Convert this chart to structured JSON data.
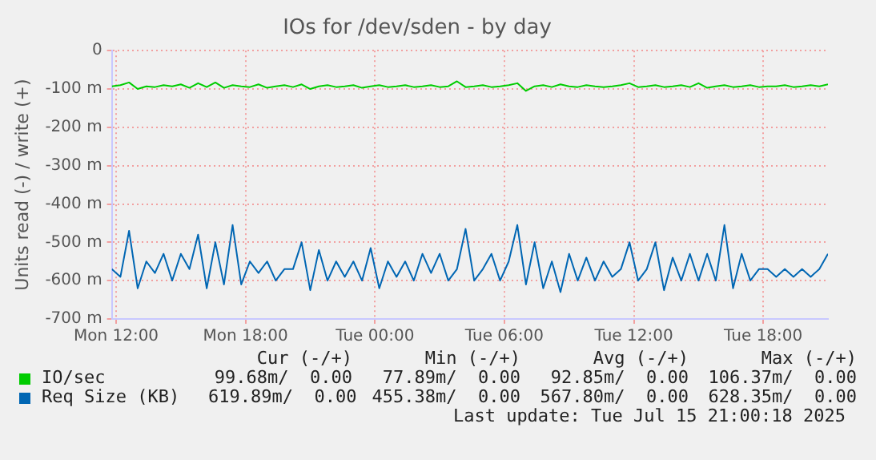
{
  "chart_data": {
    "type": "line",
    "title": "IOs for /dev/sden - by day",
    "ylabel": "Units read (-) / write (+)",
    "x": [
      "2025-07-14T11:48",
      "2025-07-14T12:12",
      "2025-07-14T12:36",
      "2025-07-14T13:00",
      "2025-07-14T13:24",
      "2025-07-14T13:48",
      "2025-07-14T14:12",
      "2025-07-14T14:36",
      "2025-07-14T15:00",
      "2025-07-14T15:24",
      "2025-07-14T15:48",
      "2025-07-14T16:12",
      "2025-07-14T16:36",
      "2025-07-14T17:00",
      "2025-07-14T17:24",
      "2025-07-14T17:48",
      "2025-07-14T18:12",
      "2025-07-14T18:36",
      "2025-07-14T19:00",
      "2025-07-14T19:24",
      "2025-07-14T19:48",
      "2025-07-14T20:12",
      "2025-07-14T20:36",
      "2025-07-14T21:00",
      "2025-07-14T21:24",
      "2025-07-14T21:48",
      "2025-07-14T22:12",
      "2025-07-14T22:36",
      "2025-07-14T23:00",
      "2025-07-14T23:24",
      "2025-07-14T23:48",
      "2025-07-15T00:12",
      "2025-07-15T00:36",
      "2025-07-15T01:00",
      "2025-07-15T01:24",
      "2025-07-15T01:48",
      "2025-07-15T02:12",
      "2025-07-15T02:36",
      "2025-07-15T03:00",
      "2025-07-15T03:24",
      "2025-07-15T03:48",
      "2025-07-15T04:12",
      "2025-07-15T04:36",
      "2025-07-15T05:00",
      "2025-07-15T05:24",
      "2025-07-15T05:48",
      "2025-07-15T06:12",
      "2025-07-15T06:36",
      "2025-07-15T07:00",
      "2025-07-15T07:24",
      "2025-07-15T07:48",
      "2025-07-15T08:12",
      "2025-07-15T08:36",
      "2025-07-15T09:00",
      "2025-07-15T09:24",
      "2025-07-15T09:48",
      "2025-07-15T10:12",
      "2025-07-15T10:36",
      "2025-07-15T11:00",
      "2025-07-15T11:24",
      "2025-07-15T11:48",
      "2025-07-15T12:12",
      "2025-07-15T12:36",
      "2025-07-15T13:00",
      "2025-07-15T13:24",
      "2025-07-15T13:48",
      "2025-07-15T14:12",
      "2025-07-15T14:36",
      "2025-07-15T15:00",
      "2025-07-15T15:24",
      "2025-07-15T15:48",
      "2025-07-15T16:12",
      "2025-07-15T16:36",
      "2025-07-15T17:00",
      "2025-07-15T17:24",
      "2025-07-15T17:48",
      "2025-07-15T18:12",
      "2025-07-15T18:36",
      "2025-07-15T19:00",
      "2025-07-15T19:24",
      "2025-07-15T19:48",
      "2025-07-15T20:12",
      "2025-07-15T20:36",
      "2025-07-15T21:00"
    ],
    "series": [
      {
        "name": "IO/sec",
        "color": "#00cc00",
        "values": [
          -93,
          -90,
          -83,
          -100,
          -93,
          -95,
          -90,
          -93,
          -88,
          -97,
          -85,
          -95,
          -83,
          -97,
          -90,
          -93,
          -95,
          -88,
          -97,
          -93,
          -90,
          -95,
          -88,
          -100,
          -93,
          -90,
          -95,
          -93,
          -90,
          -97,
          -93,
          -90,
          -95,
          -93,
          -90,
          -95,
          -93,
          -90,
          -95,
          -93,
          -80,
          -95,
          -93,
          -90,
          -95,
          -93,
          -90,
          -85,
          -105,
          -93,
          -90,
          -95,
          -88,
          -93,
          -95,
          -90,
          -93,
          -95,
          -93,
          -90,
          -85,
          -95,
          -93,
          -90,
          -95,
          -93,
          -90,
          -95,
          -85,
          -97,
          -93,
          -90,
          -95,
          -93,
          -90,
          -95,
          -93,
          -93,
          -90,
          -95,
          -93,
          -90,
          -93,
          -88
        ]
      },
      {
        "name": "Req Size (KB)",
        "color": "#0066b3",
        "values": [
          -570,
          -590,
          -470,
          -620,
          -550,
          -580,
          -530,
          -600,
          -530,
          -570,
          -480,
          -620,
          -500,
          -610,
          -455,
          -610,
          -550,
          -580,
          -550,
          -600,
          -570,
          -570,
          -500,
          -625,
          -520,
          -600,
          -550,
          -590,
          -550,
          -600,
          -515,
          -620,
          -550,
          -590,
          -550,
          -600,
          -530,
          -580,
          -530,
          -600,
          -570,
          -465,
          -600,
          -570,
          -530,
          -600,
          -550,
          -455,
          -610,
          -500,
          -620,
          -550,
          -630,
          -530,
          -600,
          -540,
          -600,
          -550,
          -590,
          -570,
          -500,
          -600,
          -570,
          -500,
          -625,
          -540,
          -600,
          -530,
          -600,
          -530,
          -600,
          -455,
          -620,
          -530,
          -600,
          -570,
          -570,
          -590,
          -570,
          -590,
          -570,
          -590,
          -570,
          -530
        ]
      }
    ],
    "xlim": [
      "2025-07-14T11:48",
      "2025-07-15T21:00"
    ],
    "xticks": [
      {
        "value": "2025-07-14T12:00",
        "label": "Mon 12:00"
      },
      {
        "value": "2025-07-14T18:00",
        "label": "Mon 18:00"
      },
      {
        "value": "2025-07-15T00:00",
        "label": "Tue 00:00"
      },
      {
        "value": "2025-07-15T06:00",
        "label": "Tue 06:00"
      },
      {
        "value": "2025-07-15T12:00",
        "label": "Tue 12:00"
      },
      {
        "value": "2025-07-15T18:00",
        "label": "Tue 18:00"
      }
    ],
    "ylim": [
      -700,
      0
    ],
    "yticks": [
      {
        "value": -700,
        "label": "-700 m"
      },
      {
        "value": -600,
        "label": "-600 m"
      },
      {
        "value": -500,
        "label": "-500 m"
      },
      {
        "value": -400,
        "label": "-400 m"
      },
      {
        "value": -300,
        "label": "-300 m"
      },
      {
        "value": -200,
        "label": "-200 m"
      },
      {
        "value": -100,
        "label": "-100 m"
      },
      0
    ],
    "grid": true,
    "legend": "bottom",
    "annotations": [
      "Cur (-/+)",
      "Min (-/+)",
      "Avg (-/+)",
      "Max (-/+)",
      "99.68m/  0.00",
      "77.89m/  0.00",
      "92.85m/  0.00",
      "106.37m/  0.00",
      "619.89m/  0.00",
      "455.38m/  0.00",
      "567.80m/  0.00",
      "628.35m/  0.00",
      "Last update: Tue Jul 15 21:00:18 2025"
    ]
  }
}
